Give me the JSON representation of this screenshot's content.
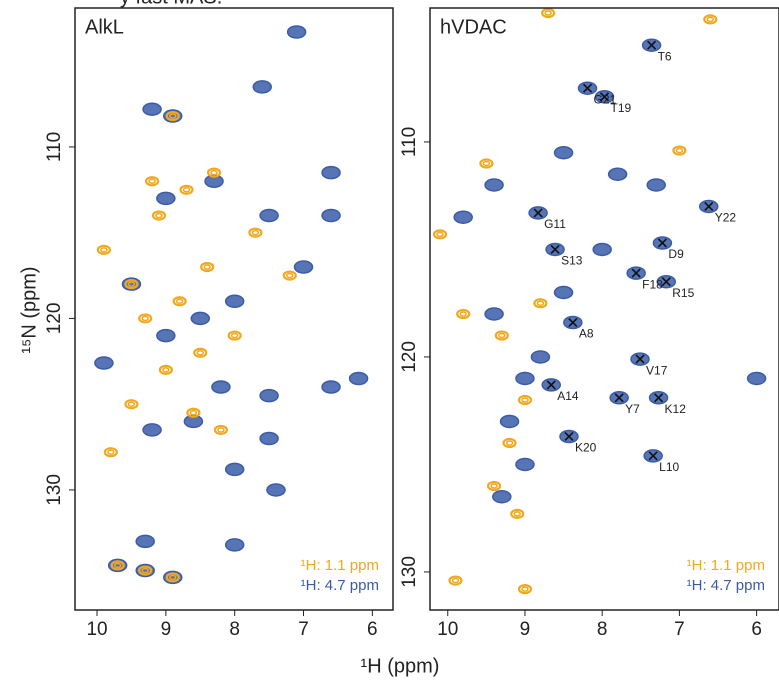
{
  "caption_fragment": "y fast MAS.",
  "ylabel": "¹⁵N (ppm)",
  "xlabel": "¹H (ppm)",
  "chart_data": [
    {
      "type": "scatter",
      "title": "AlkL",
      "xlim": [
        10.32,
        5.7
      ],
      "xticks": [
        10,
        9,
        8,
        7,
        6
      ],
      "ylim": [
        101.9,
        137.0
      ],
      "yticks": [
        110,
        120,
        130
      ],
      "series": [
        {
          "name": "¹H: 4.7 ppm",
          "color": "#3a5ca8",
          "x": [
            7.1,
            7.6,
            8.9,
            9.2,
            6.6,
            6.6,
            7.0,
            7.5,
            9.9,
            6.6,
            6.2,
            7.5,
            8.0,
            7.4,
            7.5,
            9.7,
            9.3,
            8.9,
            8.0,
            9.3,
            9.0,
            8.5,
            8.0,
            9.5,
            9.0,
            8.3,
            8.6,
            9.2,
            8.2
          ],
          "values": [
            103.3,
            106.5,
            108.2,
            107.8,
            111.5,
            114.0,
            117.0,
            114.0,
            122.6,
            124.0,
            123.5,
            124.5,
            128.8,
            130.0,
            127.0,
            134.4,
            134.7,
            135.1,
            133.2,
            133.0,
            121.0,
            120.0,
            119.0,
            118.0,
            113.0,
            112.0,
            126.0,
            126.5,
            124.0
          ]
        },
        {
          "name": "¹H: 1.1 ppm",
          "color": "#f2a81d",
          "x": [
            8.9,
            9.2,
            8.7,
            8.3,
            9.1,
            8.4,
            8.8,
            9.3,
            8.5,
            9.0,
            9.5,
            8.6,
            8.0,
            7.7,
            7.2,
            9.7,
            9.3,
            8.9,
            9.8,
            9.5,
            9.9,
            8.2
          ],
          "values": [
            108.2,
            112.0,
            112.5,
            111.5,
            114.0,
            117.0,
            119.0,
            120.0,
            122.0,
            123.0,
            125.0,
            125.5,
            121.0,
            115.0,
            117.5,
            134.4,
            134.7,
            135.1,
            127.8,
            118.0,
            116.0,
            126.5
          ]
        }
      ]
    },
    {
      "type": "scatter",
      "title": "hVDAC",
      "xlim": [
        10.23,
        5.71
      ],
      "xticks": [
        10,
        9,
        8,
        7,
        6
      ],
      "ylim": [
        103.77,
        131.77
      ],
      "yticks": [
        110,
        120,
        130
      ],
      "series": [
        {
          "name": "¹H: 4.7 ppm",
          "color": "#3a5ca8",
          "x": [
            7.36,
            8.19,
            7.97,
            8.83,
            6.62,
            7.22,
            8.61,
            7.56,
            7.17,
            8.38,
            7.51,
            8.66,
            7.78,
            7.27,
            8.43,
            7.34,
            9.4,
            9.8,
            9.0,
            9.2,
            9.0,
            9.3,
            8.8,
            8.5,
            9.4,
            8.0,
            7.8,
            8.5,
            7.3,
            6.0
          ],
          "values": [
            105.5,
            107.5,
            107.9,
            113.3,
            113.0,
            114.7,
            115.0,
            116.1,
            116.5,
            118.4,
            120.1,
            121.3,
            121.9,
            121.9,
            123.7,
            124.6,
            112.0,
            113.5,
            121.0,
            123.0,
            125.0,
            126.5,
            120.0,
            117.0,
            118.0,
            115.0,
            111.5,
            110.5,
            112.0,
            121.0
          ]
        },
        {
          "name": "¹H: 1.1 ppm",
          "color": "#f2a81d",
          "x": [
            10.1,
            9.5,
            9.8,
            9.3,
            9.0,
            9.2,
            9.4,
            9.1,
            8.8,
            8.7,
            9.9,
            9.0,
            6.6,
            7.0
          ],
          "values": [
            114.3,
            111.0,
            118.0,
            119.0,
            122.0,
            124.0,
            126.0,
            127.3,
            117.5,
            104.0,
            130.4,
            130.8,
            104.3,
            110.4
          ]
        }
      ],
      "peak_labels": [
        {
          "text": "T6",
          "x": 7.36,
          "y": 105.5
        },
        {
          "text": "G21",
          "x": 8.19,
          "y": 107.5
        },
        {
          "text": "T19",
          "x": 7.97,
          "y": 107.9
        },
        {
          "text": "G11",
          "x": 8.83,
          "y": 113.3
        },
        {
          "text": "Y22",
          "x": 6.62,
          "y": 113.0
        },
        {
          "text": "D9",
          "x": 7.22,
          "y": 114.7
        },
        {
          "text": "S13",
          "x": 8.61,
          "y": 115.0
        },
        {
          "text": "F18",
          "x": 7.56,
          "y": 116.1
        },
        {
          "text": "R15",
          "x": 7.17,
          "y": 116.5
        },
        {
          "text": "A8",
          "x": 8.38,
          "y": 118.4
        },
        {
          "text": "V17",
          "x": 7.51,
          "y": 120.1
        },
        {
          "text": "A14",
          "x": 8.66,
          "y": 121.3
        },
        {
          "text": "Y7",
          "x": 7.78,
          "y": 121.9
        },
        {
          "text": "K12",
          "x": 7.27,
          "y": 121.9
        },
        {
          "text": "K20",
          "x": 8.43,
          "y": 123.7
        },
        {
          "text": "L10",
          "x": 7.34,
          "y": 124.6
        }
      ]
    }
  ]
}
